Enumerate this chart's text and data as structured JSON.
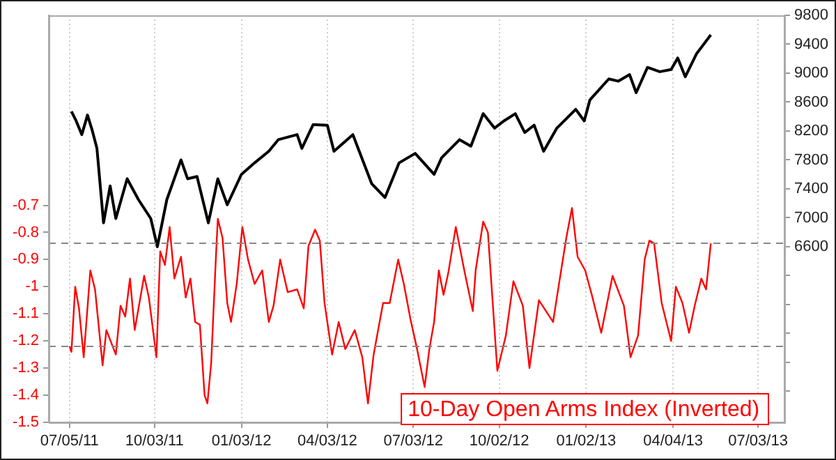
{
  "chart_data": {
    "type": "line",
    "xlim": [
      "2011-06-13",
      "2013-07-31"
    ],
    "xticks": [
      {
        "value": "2011-07-05",
        "label": "07/05/11"
      },
      {
        "value": "2011-10-03",
        "label": "10/03/11"
      },
      {
        "value": "2012-01-03",
        "label": "01/03/12"
      },
      {
        "value": "2012-04-03",
        "label": "04/03/12"
      },
      {
        "value": "2012-07-03",
        "label": "07/03/12"
      },
      {
        "value": "2012-10-02",
        "label": "10/02/12"
      },
      {
        "value": "2013-01-02",
        "label": "01/02/13"
      },
      {
        "value": "2013-04-04",
        "label": "04/04/13"
      },
      {
        "value": "2013-07-03",
        "label": "07/03/13"
      }
    ],
    "ylim": [
      -1.5,
      0
    ],
    "yticks": [
      -1.5,
      -1.4,
      -1.3,
      -1.2,
      -1.1,
      -1,
      -0.9,
      -0.8,
      -0.7
    ],
    "y2lim": [
      4170,
      9800
    ],
    "y2ticks": [
      {
        "value": 4600,
        "label": null
      },
      {
        "value": 5000,
        "label": null
      },
      {
        "value": 5400,
        "label": null
      },
      {
        "value": 5800,
        "label": null
      },
      {
        "value": 6200,
        "label": null
      },
      6600,
      7000,
      7400,
      7800,
      8200,
      8600,
      9000,
      9400,
      9800
    ],
    "grid": "x",
    "legend": false,
    "marker": "none",
    "line_style": "solid",
    "ref_lines": [
      {
        "axis": "y",
        "value": -0.84,
        "color": "#888888",
        "line_style": "dashed"
      },
      {
        "axis": "y",
        "value": -1.22,
        "color": "#888888",
        "line_style": "dashed"
      }
    ],
    "series": [
      {
        "color": "#000000",
        "axis": "y2",
        "x": [
          "2011-07-07",
          "2011-07-12",
          "2011-07-18",
          "2011-07-24",
          "2011-07-29",
          "2011-08-03",
          "2011-08-10",
          "2011-08-17",
          "2011-08-23",
          "2011-09-04",
          "2011-09-16",
          "2011-09-29",
          "2011-10-06",
          "2011-10-16",
          "2011-10-31",
          "2011-11-07",
          "2011-11-17",
          "2011-11-29",
          "2011-12-09",
          "2011-12-19",
          "2012-01-03",
          "2012-01-17",
          "2012-02-01",
          "2012-02-11",
          "2012-03-02",
          "2012-03-07",
          "2012-03-19",
          "2012-04-03",
          "2012-04-10",
          "2012-04-30",
          "2012-05-20",
          "2012-06-03",
          "2012-06-18",
          "2012-07-05",
          "2012-07-25",
          "2012-08-02",
          "2012-08-21",
          "2012-09-02",
          "2012-09-15",
          "2012-09-27",
          "2012-10-07",
          "2012-10-19",
          "2012-10-29",
          "2012-11-08",
          "2012-11-18",
          "2012-12-02",
          "2012-12-22",
          "2012-12-31",
          "2013-01-06",
          "2013-01-26",
          "2013-02-05",
          "2013-02-17",
          "2013-02-24",
          "2013-03-08",
          "2013-03-21",
          "2013-04-02",
          "2013-04-09",
          "2013-04-17",
          "2013-04-29",
          "2013-05-14"
        ],
        "values": [
          8470,
          8340,
          8150,
          8420,
          8210,
          7960,
          6930,
          7440,
          6990,
          7540,
          7250,
          6990,
          6600,
          7250,
          7800,
          7540,
          7570,
          6930,
          7540,
          7180,
          7600,
          7760,
          7920,
          8080,
          8150,
          7960,
          8290,
          8280,
          7920,
          8150,
          7470,
          7280,
          7760,
          7890,
          7600,
          7830,
          8080,
          7990,
          8440,
          8240,
          8340,
          8440,
          8180,
          8280,
          7920,
          8240,
          8500,
          8340,
          8630,
          8920,
          8890,
          8980,
          8730,
          9080,
          9020,
          9050,
          9210,
          8950,
          9270,
          9530
        ]
      },
      {
        "name": "10-Day Open Arms Index (Inverted)",
        "color": "#ff0000",
        "x": [
          "2011-07-05",
          "2011-07-07",
          "2011-07-11",
          "2011-07-15",
          "2011-07-20",
          "2011-07-27",
          "2011-08-01",
          "2011-08-09",
          "2011-08-13",
          "2011-08-23",
          "2011-08-28",
          "2011-09-02",
          "2011-09-07",
          "2011-09-12",
          "2011-09-22",
          "2011-09-27",
          "2011-10-05",
          "2011-10-09",
          "2011-10-14",
          "2011-10-19",
          "2011-10-24",
          "2011-10-31",
          "2011-11-05",
          "2011-11-10",
          "2011-11-15",
          "2011-11-20",
          "2011-11-25",
          "2011-11-28",
          "2011-12-02",
          "2011-12-07",
          "2011-12-09",
          "2011-12-14",
          "2011-12-19",
          "2011-12-23",
          "2011-12-29",
          "2012-01-04",
          "2012-01-10",
          "2012-01-17",
          "2012-01-25",
          "2012-02-01",
          "2012-02-06",
          "2012-02-13",
          "2012-02-21",
          "2012-03-02",
          "2012-03-09",
          "2012-03-14",
          "2012-03-21",
          "2012-03-26",
          "2012-03-31",
          "2012-04-08",
          "2012-04-15",
          "2012-04-22",
          "2012-05-02",
          "2012-05-10",
          "2012-05-16",
          "2012-05-22",
          "2012-06-01",
          "2012-06-08",
          "2012-06-17",
          "2012-06-23",
          "2012-06-30",
          "2012-07-07",
          "2012-07-15",
          "2012-07-20",
          "2012-07-25",
          "2012-07-30",
          "2012-08-04",
          "2012-08-09",
          "2012-08-17",
          "2012-08-26",
          "2012-09-04",
          "2012-09-07",
          "2012-09-15",
          "2012-09-20",
          "2012-09-30",
          "2012-10-09",
          "2012-10-17",
          "2012-10-27",
          "2012-11-03",
          "2012-11-13",
          "2012-11-28",
          "2012-12-02",
          "2012-12-12",
          "2012-12-18",
          "2012-12-24",
          "2013-01-01",
          "2013-01-08",
          "2013-01-18",
          "2013-01-30",
          "2013-02-11",
          "2013-02-18",
          "2013-02-26",
          "2013-03-05",
          "2013-03-10",
          "2013-03-15",
          "2013-03-23",
          "2013-04-02",
          "2013-04-07",
          "2013-04-14",
          "2013-04-21",
          "2013-04-27",
          "2013-05-04",
          "2013-05-09",
          "2013-05-14"
        ],
        "values": [
          -1.22,
          -1.24,
          -1,
          -1.08,
          -1.26,
          -0.94,
          -1.01,
          -1.29,
          -1.16,
          -1.25,
          -1.07,
          -1.11,
          -0.97,
          -1.16,
          -0.96,
          -1.04,
          -1.26,
          -0.87,
          -0.92,
          -0.78,
          -0.97,
          -0.89,
          -1.04,
          -0.97,
          -1.13,
          -1.14,
          -1.4,
          -1.43,
          -1.28,
          -0.89,
          -0.75,
          -0.82,
          -1.06,
          -1.13,
          -0.99,
          -0.78,
          -0.9,
          -0.99,
          -0.94,
          -1.13,
          -1.07,
          -0.9,
          -1.02,
          -1.01,
          -1.08,
          -0.85,
          -0.79,
          -0.83,
          -1.06,
          -1.25,
          -1.13,
          -1.23,
          -1.16,
          -1.26,
          -1.43,
          -1.25,
          -1.06,
          -1.06,
          -0.9,
          -0.99,
          -1.12,
          -1.23,
          -1.37,
          -1.23,
          -1.13,
          -0.94,
          -1.03,
          -0.95,
          -0.78,
          -0.94,
          -1.09,
          -0.94,
          -0.76,
          -0.8,
          -1.31,
          -1.18,
          -0.98,
          -1.07,
          -1.3,
          -1.05,
          -1.13,
          -1.04,
          -0.82,
          -0.71,
          -0.89,
          -0.94,
          -1.03,
          -1.17,
          -0.96,
          -1.07,
          -1.26,
          -1.18,
          -0.9,
          -0.83,
          -0.84,
          -1.06,
          -1.2,
          -1,
          -1.06,
          -1.17,
          -1.07,
          -0.97,
          -1.01,
          -0.84
        ]
      }
    ]
  }
}
